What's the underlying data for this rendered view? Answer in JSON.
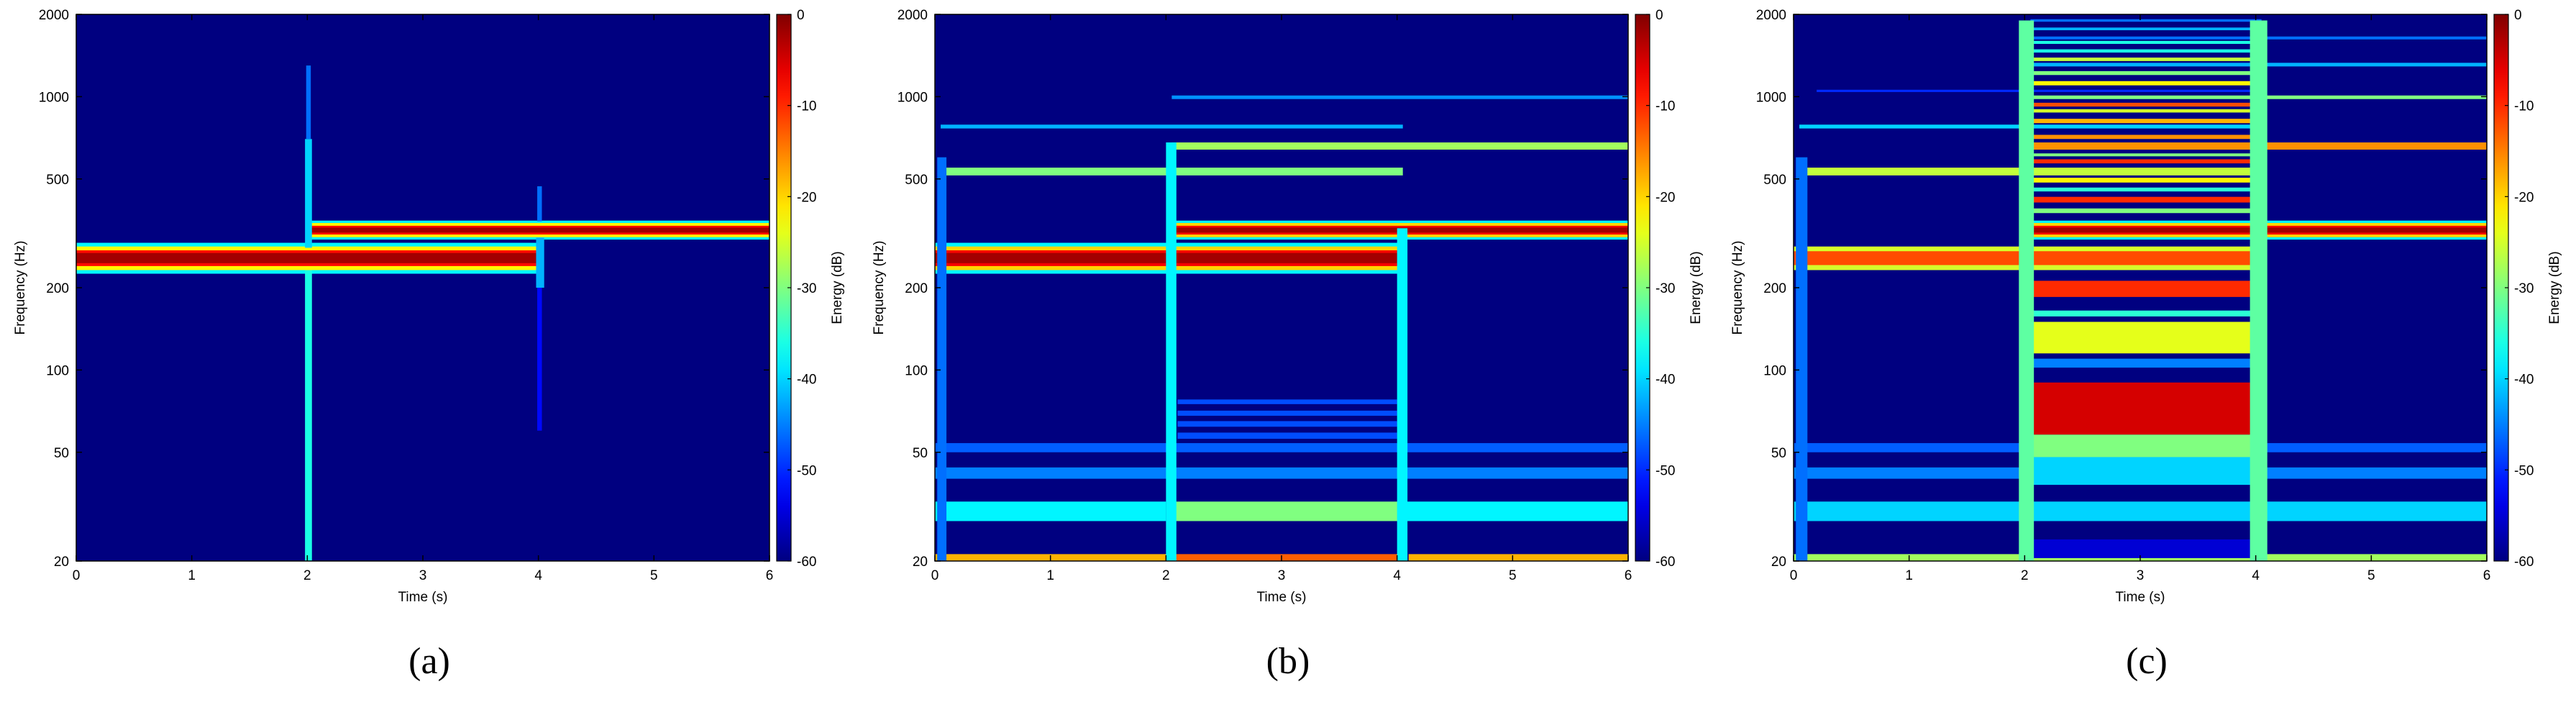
{
  "chart_data": [
    {
      "type": "heatmap",
      "panel_label": "(a)",
      "xlabel": "Time (s)",
      "ylabel": "Frequency (Hz)",
      "colorbar_label": "Energy (dB)",
      "xlim": [
        0,
        6
      ],
      "ylim": [
        20,
        2000
      ],
      "yscale": "log",
      "clim": [
        -60,
        0
      ],
      "colormap": "jet",
      "background_db": -60,
      "x_ticks": [
        "0",
        "1",
        "2",
        "3",
        "4",
        "5",
        "6"
      ],
      "y_ticks": [
        {
          "value": 20,
          "label": "20"
        },
        {
          "value": 50,
          "label": "50"
        },
        {
          "value": 100,
          "label": "100"
        },
        {
          "value": 200,
          "label": "200"
        },
        {
          "value": 500,
          "label": "500"
        },
        {
          "value": 1000,
          "label": "1000"
        },
        {
          "value": 2000,
          "label": "2000"
        }
      ],
      "colorbar_ticks": [
        "0",
        "-10",
        "-20",
        "-30",
        "-40",
        "-50",
        "-60"
      ],
      "bands": [
        {
          "t0": 0,
          "t1": 4,
          "f0": 225,
          "f1": 292,
          "db": -38
        },
        {
          "t0": 0,
          "t1": 4,
          "f0": 232,
          "f1": 283,
          "db": -22
        },
        {
          "t0": 0,
          "t1": 4,
          "f0": 240,
          "f1": 274,
          "db": -8
        },
        {
          "t0": 0,
          "t1": 4,
          "f0": 246,
          "f1": 268,
          "db": -2
        },
        {
          "t0": 2,
          "t1": 6,
          "f0": 300,
          "f1": 352,
          "db": -38
        },
        {
          "t0": 2,
          "t1": 6,
          "f0": 306,
          "f1": 345,
          "db": -22
        },
        {
          "t0": 2,
          "t1": 6,
          "f0": 313,
          "f1": 337,
          "db": -8
        },
        {
          "t0": 2,
          "t1": 6,
          "f0": 318,
          "f1": 332,
          "db": -2
        },
        {
          "t0": 1.98,
          "t1": 2.04,
          "f0": 20,
          "f1": 232,
          "db": -36
        },
        {
          "t0": 1.98,
          "t1": 2.04,
          "f0": 280,
          "f1": 700,
          "db": -40
        },
        {
          "t0": 1.99,
          "t1": 2.03,
          "f0": 700,
          "f1": 1300,
          "db": -46
        },
        {
          "t0": 3.98,
          "t1": 4.05,
          "f0": 200,
          "f1": 305,
          "db": -42
        },
        {
          "t0": 3.99,
          "t1": 4.03,
          "f0": 60,
          "f1": 200,
          "db": -52
        },
        {
          "t0": 3.99,
          "t1": 4.03,
          "f0": 350,
          "f1": 470,
          "db": -46
        }
      ]
    },
    {
      "type": "heatmap",
      "panel_label": "(b)",
      "xlabel": "Time (s)",
      "ylabel": "Frequency (Hz)",
      "colorbar_label": "Energy (dB)",
      "xlim": [
        0,
        6
      ],
      "ylim": [
        20,
        2000
      ],
      "yscale": "log",
      "clim": [
        -60,
        0
      ],
      "colormap": "jet",
      "background_db": -60,
      "x_ticks": [
        "0",
        "1",
        "2",
        "3",
        "4",
        "5",
        "6"
      ],
      "y_ticks": [
        {
          "value": 20,
          "label": "20"
        },
        {
          "value": 50,
          "label": "50"
        },
        {
          "value": 100,
          "label": "100"
        },
        {
          "value": 200,
          "label": "200"
        },
        {
          "value": 500,
          "label": "500"
        },
        {
          "value": 1000,
          "label": "1000"
        },
        {
          "value": 2000,
          "label": "2000"
        }
      ],
      "colorbar_ticks": [
        "0",
        "-10",
        "-20",
        "-30",
        "-40",
        "-50",
        "-60"
      ],
      "bands": [
        {
          "t0": 0,
          "t1": 6,
          "f0": 50,
          "f1": 54,
          "db": -47
        },
        {
          "t0": 0,
          "t1": 6,
          "f0": 40,
          "f1": 44,
          "db": -45
        },
        {
          "t0": 0,
          "t1": 2,
          "f0": 28,
          "f1": 33,
          "db": -38
        },
        {
          "t0": 4.05,
          "t1": 6,
          "f0": 28,
          "f1": 33,
          "db": -38
        },
        {
          "t0": 2.05,
          "t1": 4.05,
          "f0": 28,
          "f1": 33,
          "db": -30
        },
        {
          "t0": 0,
          "t1": 2,
          "f0": 20,
          "f1": 21.2,
          "db": -18
        },
        {
          "t0": 4.1,
          "t1": 6,
          "f0": 20,
          "f1": 21.2,
          "db": -18
        },
        {
          "t0": 2.05,
          "t1": 4.05,
          "f0": 20,
          "f1": 21.2,
          "db": -13
        },
        {
          "t0": 2.1,
          "t1": 4.0,
          "f0": 75,
          "f1": 78,
          "db": -48
        },
        {
          "t0": 2.1,
          "t1": 4.0,
          "f0": 68,
          "f1": 71,
          "db": -48
        },
        {
          "t0": 2.1,
          "t1": 4.0,
          "f0": 62,
          "f1": 65,
          "db": -48
        },
        {
          "t0": 2.1,
          "t1": 4.0,
          "f0": 56,
          "f1": 59,
          "db": -48
        },
        {
          "t0": 0,
          "t1": 4.05,
          "f0": 225,
          "f1": 292,
          "db": -38
        },
        {
          "t0": 0,
          "t1": 4.05,
          "f0": 232,
          "f1": 283,
          "db": -20
        },
        {
          "t0": 0,
          "t1": 4.05,
          "f0": 240,
          "f1": 274,
          "db": -7
        },
        {
          "t0": 0,
          "t1": 4.05,
          "f0": 246,
          "f1": 268,
          "db": -2
        },
        {
          "t0": 2.05,
          "t1": 6,
          "f0": 300,
          "f1": 352,
          "db": -38
        },
        {
          "t0": 2.05,
          "t1": 6,
          "f0": 306,
          "f1": 345,
          "db": -20
        },
        {
          "t0": 2.05,
          "t1": 6,
          "f0": 313,
          "f1": 337,
          "db": -7
        },
        {
          "t0": 2.05,
          "t1": 6,
          "f0": 318,
          "f1": 332,
          "db": -2
        },
        {
          "t0": 0.05,
          "t1": 4.05,
          "f0": 515,
          "f1": 550,
          "db": -30
        },
        {
          "t0": 2.05,
          "t1": 6,
          "f0": 640,
          "f1": 680,
          "db": -28
        },
        {
          "t0": 0.05,
          "t1": 4.05,
          "f0": 765,
          "f1": 790,
          "db": -42
        },
        {
          "t0": 2.05,
          "t1": 6,
          "f0": 980,
          "f1": 1010,
          "db": -44
        },
        {
          "t0": 0.02,
          "t1": 0.1,
          "f0": 20,
          "f1": 600,
          "db": -46
        },
        {
          "t0": 2.0,
          "t1": 2.09,
          "f0": 20,
          "f1": 680,
          "db": -38
        },
        {
          "t0": 4.0,
          "t1": 4.09,
          "f0": 20,
          "f1": 330,
          "db": -38
        }
      ]
    },
    {
      "type": "heatmap",
      "panel_label": "(c)",
      "xlabel": "Time (s)",
      "ylabel": "Frequency (Hz)",
      "colorbar_label": "Energy (dB)",
      "xlim": [
        0,
        6
      ],
      "ylim": [
        20,
        2000
      ],
      "yscale": "log",
      "clim": [
        -60,
        0
      ],
      "colormap": "jet",
      "background_db": -60,
      "x_ticks": [
        "0",
        "1",
        "2",
        "3",
        "4",
        "5",
        "6"
      ],
      "y_ticks": [
        {
          "value": 20,
          "label": "20"
        },
        {
          "value": 50,
          "label": "50"
        },
        {
          "value": 100,
          "label": "100"
        },
        {
          "value": 200,
          "label": "200"
        },
        {
          "value": 500,
          "label": "500"
        },
        {
          "value": 1000,
          "label": "1000"
        },
        {
          "value": 2000,
          "label": "2000"
        }
      ],
      "colorbar_ticks": [
        "0",
        "-10",
        "-20",
        "-30",
        "-40",
        "-50",
        "-60"
      ],
      "bands": [
        {
          "t0": 0,
          "t1": 6,
          "f0": 50,
          "f1": 54,
          "db": -47
        },
        {
          "t0": 0,
          "t1": 6,
          "f0": 40,
          "f1": 44,
          "db": -45
        },
        {
          "t0": 0,
          "t1": 6,
          "f0": 28,
          "f1": 33,
          "db": -40
        },
        {
          "t0": 0,
          "t1": 6,
          "f0": 20,
          "f1": 21.2,
          "db": -28
        },
        {
          "t0": 2.05,
          "t1": 4.05,
          "f0": 58,
          "f1": 90,
          "db": -5
        },
        {
          "t0": 2.05,
          "t1": 4.05,
          "f0": 48,
          "f1": 58,
          "db": -30
        },
        {
          "t0": 2.05,
          "t1": 4.05,
          "f0": 38,
          "f1": 48,
          "db": -40
        },
        {
          "t0": 2.05,
          "t1": 4.05,
          "f0": 20.5,
          "f1": 24,
          "db": -55
        },
        {
          "t0": 2.05,
          "t1": 4.05,
          "f0": 102,
          "f1": 110,
          "db": -45
        },
        {
          "t0": 2.05,
          "t1": 4.05,
          "f0": 115,
          "f1": 150,
          "db": -24
        },
        {
          "t0": 2.05,
          "t1": 4.05,
          "f0": 157,
          "f1": 165,
          "db": -35
        },
        {
          "t0": 2.05,
          "t1": 4.05,
          "f0": 185,
          "f1": 212,
          "db": -10
        },
        {
          "t0": 2.05,
          "t1": 4.05,
          "f0": 375,
          "f1": 390,
          "db": -30
        },
        {
          "t0": 2.05,
          "t1": 4.05,
          "f0": 410,
          "f1": 430,
          "db": -10
        },
        {
          "t0": 2.05,
          "t1": 4.05,
          "f0": 450,
          "f1": 465,
          "db": -35
        },
        {
          "t0": 2.05,
          "t1": 4.05,
          "f0": 485,
          "f1": 505,
          "db": -22
        },
        {
          "t0": 2.05,
          "t1": 4.05,
          "f0": 570,
          "f1": 590,
          "db": -10
        },
        {
          "t0": 2.05,
          "t1": 4.05,
          "f0": 605,
          "f1": 620,
          "db": -30
        },
        {
          "t0": 2.05,
          "t1": 4.05,
          "f0": 700,
          "f1": 725,
          "db": -16
        },
        {
          "t0": 2.05,
          "t1": 4.05,
          "f0": 800,
          "f1": 830,
          "db": -18
        },
        {
          "t0": 2.05,
          "t1": 4.05,
          "f0": 875,
          "f1": 900,
          "db": -25
        },
        {
          "t0": 2.05,
          "t1": 4.05,
          "f0": 920,
          "f1": 950,
          "db": -12
        },
        {
          "t0": 2.05,
          "t1": 4.05,
          "f0": 1100,
          "f1": 1140,
          "db": -22
        },
        {
          "t0": 2.05,
          "t1": 4.05,
          "f0": 1200,
          "f1": 1240,
          "db": -30
        },
        {
          "t0": 2.05,
          "t1": 4.05,
          "f0": 1350,
          "f1": 1390,
          "db": -26
        },
        {
          "t0": 2.05,
          "t1": 4.05,
          "f0": 1450,
          "f1": 1490,
          "db": -36
        },
        {
          "t0": 2.05,
          "t1": 4.05,
          "f0": 1560,
          "f1": 1600,
          "db": -36
        },
        {
          "t0": 2.05,
          "t1": 4.05,
          "f0": 1750,
          "f1": 1790,
          "db": -42
        },
        {
          "t0": 2.05,
          "t1": 4.05,
          "f0": 1880,
          "f1": 1920,
          "db": -46
        },
        {
          "t0": 0,
          "t1": 4.05,
          "f0": 232,
          "f1": 283,
          "db": -25
        },
        {
          "t0": 0,
          "t1": 4.05,
          "f0": 242,
          "f1": 272,
          "db": -12
        },
        {
          "t0": 2.05,
          "t1": 6,
          "f0": 300,
          "f1": 352,
          "db": -38
        },
        {
          "t0": 2.05,
          "t1": 6,
          "f0": 306,
          "f1": 345,
          "db": -20
        },
        {
          "t0": 2.05,
          "t1": 6,
          "f0": 313,
          "f1": 337,
          "db": -7
        },
        {
          "t0": 2.05,
          "t1": 6,
          "f0": 318,
          "f1": 332,
          "db": -2
        },
        {
          "t0": 0.05,
          "t1": 4.05,
          "f0": 515,
          "f1": 550,
          "db": -26
        },
        {
          "t0": 2.05,
          "t1": 6,
          "f0": 640,
          "f1": 680,
          "db": -16
        },
        {
          "t0": 0.05,
          "t1": 4.05,
          "f0": 765,
          "f1": 790,
          "db": -40
        },
        {
          "t0": 2.05,
          "t1": 6,
          "f0": 980,
          "f1": 1010,
          "db": -30
        },
        {
          "t0": 0.2,
          "t1": 4.05,
          "f0": 1040,
          "f1": 1060,
          "db": -50
        },
        {
          "t0": 2.05,
          "t1": 6,
          "f0": 1290,
          "f1": 1330,
          "db": -42
        },
        {
          "t0": 2.05,
          "t1": 6,
          "f0": 1620,
          "f1": 1660,
          "db": -46
        },
        {
          "t0": 0.02,
          "t1": 0.12,
          "f0": 20,
          "f1": 600,
          "db": -46
        },
        {
          "t0": 1.95,
          "t1": 2.08,
          "f0": 20,
          "f1": 1900,
          "db": -32
        },
        {
          "t0": 3.95,
          "t1": 4.1,
          "f0": 20,
          "f1": 1900,
          "db": -32
        }
      ]
    }
  ]
}
